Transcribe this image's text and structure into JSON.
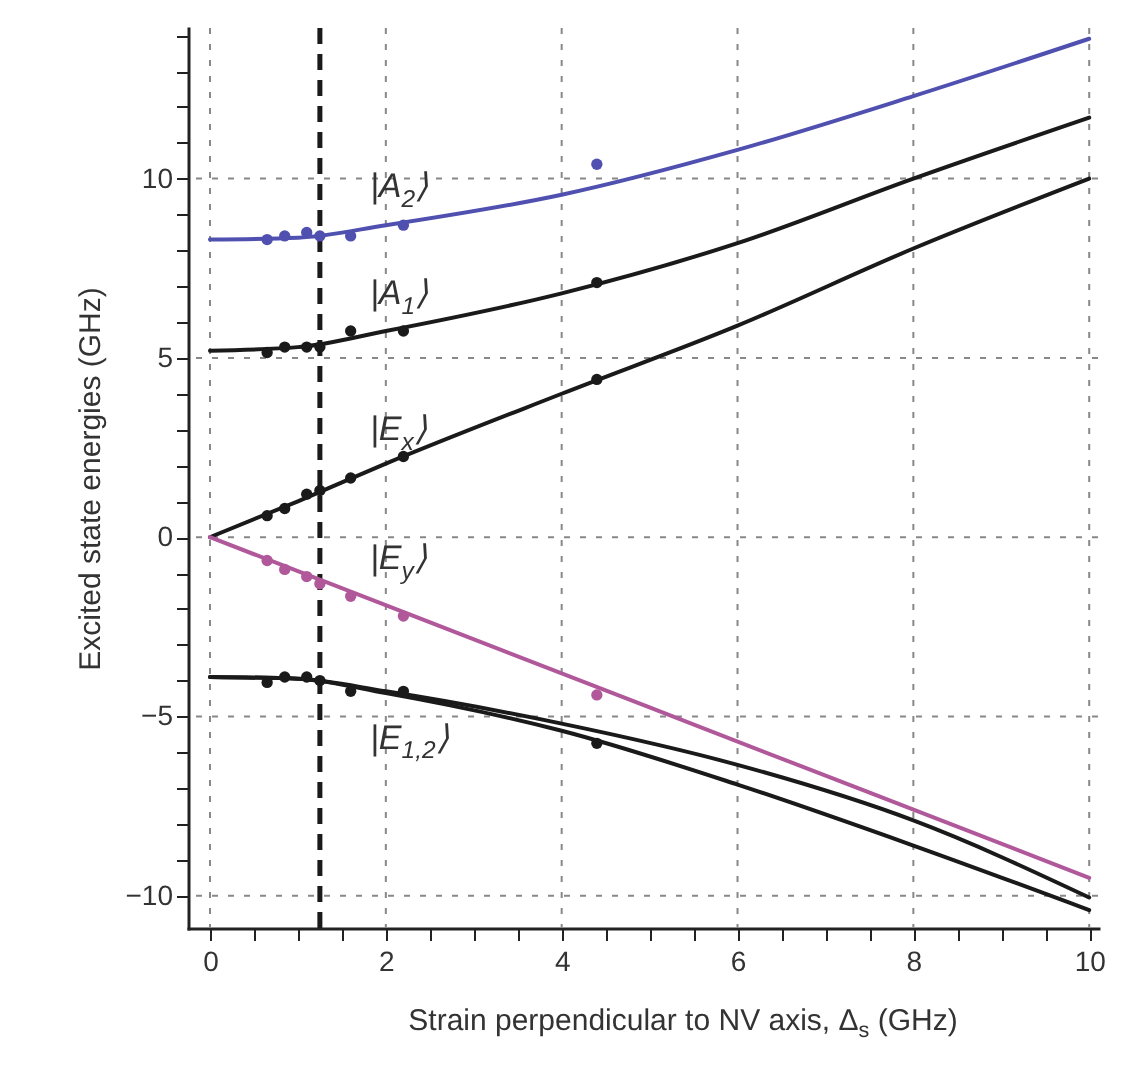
{
  "chart_data": {
    "type": "line",
    "xlabel": "Strain perpendicular to NV axis, Δ$_{s}$ (GHz)",
    "ylabel": "Excited state energies (GHz)",
    "xlim": [
      -0.25,
      10.1
    ],
    "ylim": [
      -10.9,
      14.2
    ],
    "xticks": [
      0,
      {
        "value": 0.5,
        "label": null
      },
      {
        "value": 1,
        "label": null
      },
      {
        "value": 1.5,
        "label": null
      },
      2,
      {
        "value": 2.5,
        "label": null
      },
      {
        "value": 3,
        "label": null
      },
      {
        "value": 3.5,
        "label": null
      },
      4,
      {
        "value": 4.5,
        "label": null
      },
      {
        "value": 5,
        "label": null
      },
      {
        "value": 5.5,
        "label": null
      },
      6,
      {
        "value": 6.5,
        "label": null
      },
      {
        "value": 7,
        "label": null
      },
      {
        "value": 7.5,
        "label": null
      },
      8,
      {
        "value": 8.5,
        "label": null
      },
      {
        "value": 9,
        "label": null
      },
      {
        "value": 9.5,
        "label": null
      },
      10
    ],
    "yticks": [
      -10,
      {
        "value": -9,
        "label": null
      },
      {
        "value": -8,
        "label": null
      },
      {
        "value": -7,
        "label": null
      },
      {
        "value": -6,
        "label": null
      },
      -5,
      {
        "value": -4,
        "label": null
      },
      {
        "value": -3,
        "label": null
      },
      {
        "value": -2,
        "label": null
      },
      {
        "value": -1,
        "label": null
      },
      0,
      {
        "value": 1,
        "label": null
      },
      {
        "value": 2,
        "label": null
      },
      {
        "value": 3,
        "label": null
      },
      {
        "value": 4,
        "label": null
      },
      5,
      {
        "value": 6,
        "label": null
      },
      {
        "value": 7,
        "label": null
      },
      {
        "value": 8,
        "label": null
      },
      {
        "value": 9,
        "label": null
      },
      10,
      {
        "value": 11,
        "label": null
      },
      {
        "value": 12,
        "label": null
      },
      {
        "value": 13,
        "label": null
      },
      {
        "value": 14,
        "label": null
      }
    ],
    "grid": true,
    "series": [
      {
        "name": "|A$_{2}$⟩",
        "color": "#5050b0",
        "x": [
          0,
          1,
          2,
          4,
          6,
          8,
          10
        ],
        "values": [
          8.3,
          8.35,
          8.7,
          9.55,
          10.8,
          12.3,
          13.9
        ]
      },
      {
        "name": "|A$_{1}$⟩",
        "color": "#1a1a1a",
        "x": [
          0,
          1,
          2,
          4,
          6,
          8,
          10
        ],
        "values": [
          5.2,
          5.3,
          5.75,
          6.8,
          8.2,
          10.0,
          11.7
        ]
      },
      {
        "name": "|E$_{x}$⟩",
        "color": "#1a1a1a",
        "x": [
          0,
          1,
          2,
          4,
          6,
          8,
          10
        ],
        "values": [
          0,
          1.0,
          2.05,
          4.0,
          5.9,
          8.05,
          10.0
        ]
      },
      {
        "name": "|E$_{y}$⟩",
        "color": "#b0589a",
        "x": [
          0,
          5,
          10
        ],
        "values": [
          0,
          -4.75,
          -9.5
        ]
      },
      {
        "color": "#1a1a1a",
        "x": [
          0,
          1,
          2,
          4,
          6,
          8,
          10
        ],
        "values": [
          -3.9,
          -3.95,
          -4.3,
          -5.2,
          -6.35,
          -7.9,
          -10.05
        ]
      },
      {
        "name": "|E$_{1,2}$⟩",
        "color": "#1a1a1a",
        "x": [
          0,
          1,
          2,
          4,
          6,
          8,
          10
        ],
        "values": [
          -3.9,
          -3.95,
          -4.35,
          -5.4,
          -6.9,
          -8.6,
          -10.4
        ]
      },
      {
        "type": "scatter",
        "color": "#5050b0",
        "x": [
          0.65,
          0.85,
          1.1,
          1.25,
          1.6,
          2.2,
          4.4
        ],
        "values": [
          8.3,
          8.4,
          8.5,
          8.4,
          8.4,
          8.7,
          10.4
        ]
      },
      {
        "type": "scatter",
        "color": "#1a1a1a",
        "x": [
          0.65,
          0.85,
          1.1,
          1.25,
          1.6,
          2.2,
          4.4
        ],
        "values": [
          5.15,
          5.3,
          5.3,
          5.3,
          5.75,
          5.75,
          7.1
        ]
      },
      {
        "type": "scatter",
        "color": "#1a1a1a",
        "x": [
          0.65,
          0.85,
          1.1,
          1.25,
          1.6,
          2.2,
          4.4
        ],
        "values": [
          0.6,
          0.8,
          1.2,
          1.3,
          1.65,
          2.25,
          4.4
        ]
      },
      {
        "type": "scatter",
        "color": "#b0589a",
        "x": [
          0.65,
          0.85,
          1.1,
          1.25,
          1.6,
          2.2,
          4.4
        ],
        "values": [
          -0.65,
          -0.9,
          -1.1,
          -1.3,
          -1.65,
          -2.2,
          -4.4
        ]
      },
      {
        "type": "scatter",
        "color": "#1a1a1a",
        "x": [
          0.65,
          0.85,
          1.1,
          1.25,
          1.6,
          2.2,
          4.4
        ],
        "values": [
          -4.05,
          -3.9,
          -3.9,
          -4.0,
          -4.3,
          -4.3,
          -5.75
        ]
      }
    ],
    "ref_lines": [
      {
        "axis": "x",
        "value": 1.25,
        "color": "#1a1a1a",
        "line_style": "dashed"
      }
    ]
  }
}
